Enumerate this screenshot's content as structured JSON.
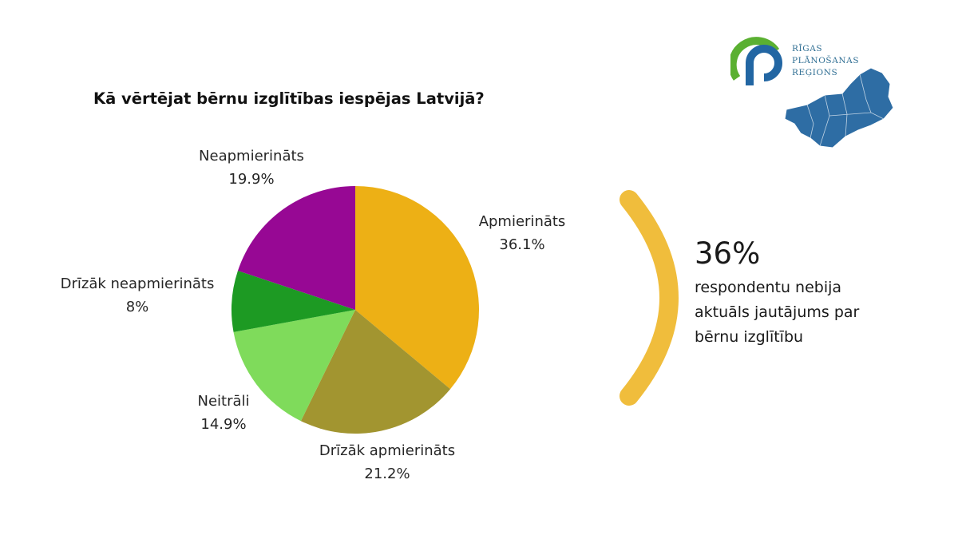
{
  "chart_data": {
    "type": "pie",
    "title": "Kā vērtējat bērnu izglītības iespējas Latvijā?",
    "slices": [
      {
        "label": "Apmierināts",
        "value": 36.1,
        "display": "36.1%",
        "color": "#edb015"
      },
      {
        "label": "Drīzāk apmierināts",
        "value": 21.2,
        "display": "21.2%",
        "color": "#a29530"
      },
      {
        "label": "Neitrāli",
        "value": 14.9,
        "display": "14.9%",
        "color": "#7fdb5b"
      },
      {
        "label": "Drīzāk neapmierināts",
        "value": 8,
        "display": "8%",
        "color": "#1d9a23"
      },
      {
        "label": "Neapmierināts",
        "value": 19.9,
        "display": "19.9%",
        "color": "#970894"
      }
    ],
    "start": "12 o'clock",
    "direction": "clockwise",
    "legend": "none"
  },
  "stat": {
    "value": "36%",
    "lines": [
      "respondentu nebija",
      "aktuāls jautājums par",
      "bērnu izglītību"
    ],
    "arc_color": "#f0bd3c"
  },
  "logo": {
    "lines": [
      "RĪGAS",
      "PLĀNOŠANAS",
      "REĢIONS"
    ],
    "green": "#5ab031",
    "blue": "#2266a3"
  }
}
